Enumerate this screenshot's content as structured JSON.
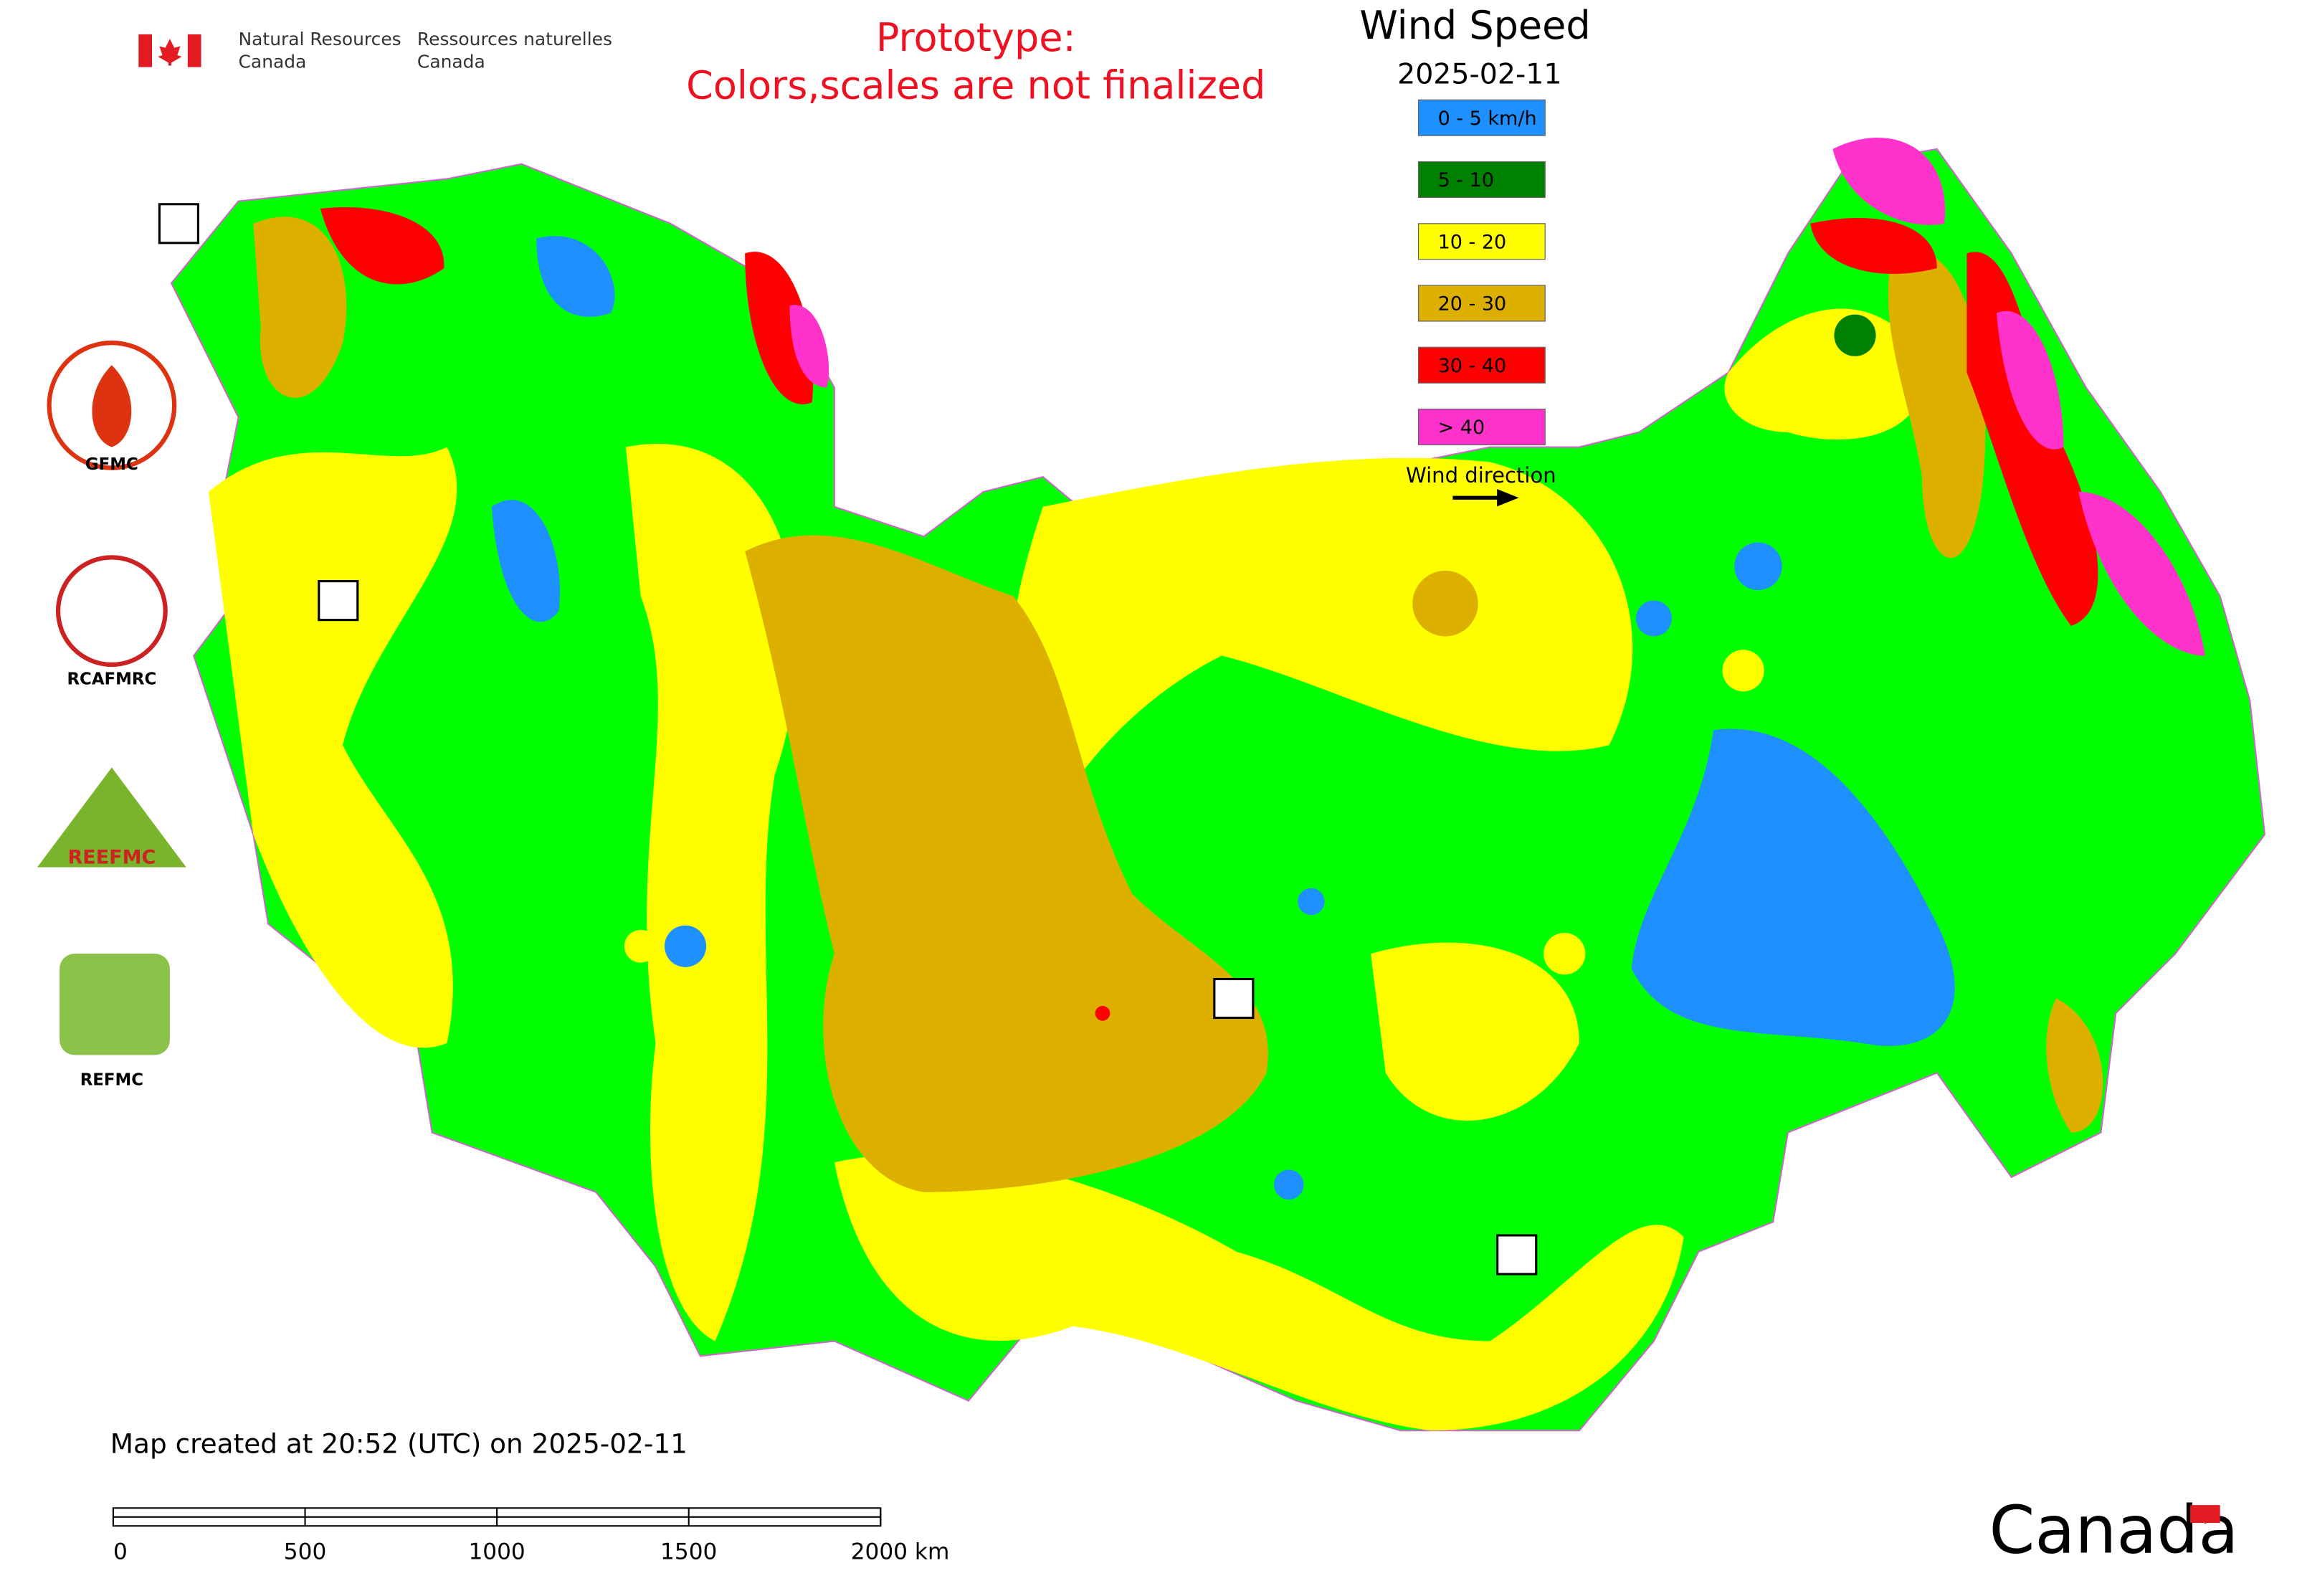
{
  "header": {
    "agency_en": [
      "Natural Resources",
      "Canada"
    ],
    "agency_fr": [
      "Ressources naturelles",
      "Canada"
    ],
    "notice": [
      "Prototype:",
      "Colors,scales are not finalized"
    ]
  },
  "legend": {
    "title": "Wind Speed",
    "date": "2025-02-11",
    "items": [
      {
        "label": "0 - 5 km/h",
        "color": "#1e90ff"
      },
      {
        "label": "5 - 10",
        "color": "#008000"
      },
      {
        "label": "10 - 20",
        "color": "#ffff00"
      },
      {
        "label": "20 - 30",
        "color": "#ddb000"
      },
      {
        "label": "30 - 40",
        "color": "#ff0000"
      },
      {
        "label": "> 40",
        "color": "#ff33cc"
      }
    ],
    "wind_direction": "Wind direction"
  },
  "logos": [
    "GFMC",
    "RCAFMRC",
    "REEFMC",
    "REFMC"
  ],
  "footer": {
    "created": "Map created at 20:52 (UTC) on 2025-02-11",
    "scale_labels": [
      "0",
      "500",
      "1000",
      "1500",
      "2000 km"
    ],
    "wordmark": "Canada"
  }
}
